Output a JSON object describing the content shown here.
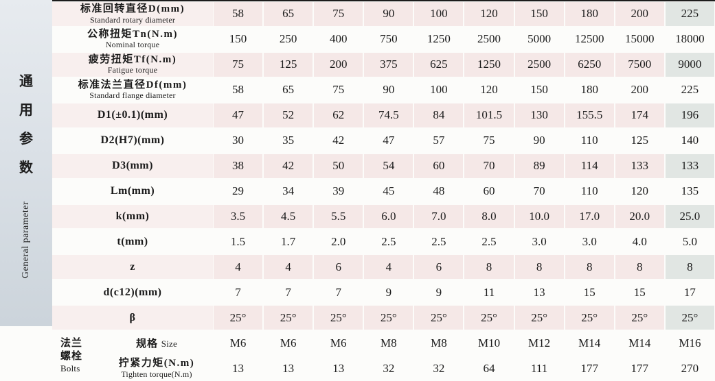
{
  "side": {
    "cn_chars": [
      "通",
      "用",
      "参",
      "数"
    ],
    "en": "General parameter"
  },
  "table": {
    "rows": [
      {
        "label_cn": "标准回转直径D(mm)",
        "label_en": "Standard rotary diameter",
        "two_line": true,
        "shaded": true,
        "values": [
          "58",
          "65",
          "75",
          "90",
          "100",
          "120",
          "150",
          "180",
          "200",
          "225"
        ]
      },
      {
        "label_cn": "公称扭矩Tn(N.m)",
        "label_en": "Nominal torque",
        "two_line": true,
        "shaded": false,
        "values": [
          "150",
          "250",
          "400",
          "750",
          "1250",
          "2500",
          "5000",
          "12500",
          "15000",
          "18000"
        ]
      },
      {
        "label_cn": "疲劳扭矩Tf(N.m)",
        "label_en": "Fatigue torque",
        "two_line": true,
        "shaded": true,
        "values": [
          "75",
          "125",
          "200",
          "375",
          "625",
          "1250",
          "2500",
          "6250",
          "7500",
          "9000"
        ]
      },
      {
        "label_cn": "标准法兰直径Df(mm)",
        "label_en": "Standard flange diameter",
        "two_line": true,
        "shaded": false,
        "values": [
          "58",
          "65",
          "75",
          "90",
          "100",
          "120",
          "150",
          "180",
          "200",
          "225"
        ]
      },
      {
        "label_cn": "D1(±0.1)(mm)",
        "label_en": "",
        "two_line": false,
        "shaded": true,
        "values": [
          "47",
          "52",
          "62",
          "74.5",
          "84",
          "101.5",
          "130",
          "155.5",
          "174",
          "196"
        ]
      },
      {
        "label_cn": "D2(H7)(mm)",
        "label_en": "",
        "two_line": false,
        "shaded": false,
        "values": [
          "30",
          "35",
          "42",
          "47",
          "57",
          "75",
          "90",
          "110",
          "125",
          "140"
        ]
      },
      {
        "label_cn": "D3(mm)",
        "label_en": "",
        "two_line": false,
        "shaded": true,
        "values": [
          "38",
          "42",
          "50",
          "54",
          "60",
          "70",
          "89",
          "114",
          "133",
          "133"
        ]
      },
      {
        "label_cn": "Lm(mm)",
        "label_en": "",
        "two_line": false,
        "shaded": false,
        "values": [
          "29",
          "34",
          "39",
          "45",
          "48",
          "60",
          "70",
          "110",
          "120",
          "135"
        ]
      },
      {
        "label_cn": "k(mm)",
        "label_en": "",
        "two_line": false,
        "shaded": true,
        "values": [
          "3.5",
          "4.5",
          "5.5",
          "6.0",
          "7.0",
          "8.0",
          "10.0",
          "17.0",
          "20.0",
          "25.0"
        ]
      },
      {
        "label_cn": "t(mm)",
        "label_en": "",
        "two_line": false,
        "shaded": false,
        "values": [
          "1.5",
          "1.7",
          "2.0",
          "2.5",
          "2.5",
          "2.5",
          "3.0",
          "3.0",
          "4.0",
          "5.0"
        ]
      },
      {
        "label_cn": "z",
        "label_en": "",
        "two_line": false,
        "shaded": true,
        "values": [
          "4",
          "4",
          "6",
          "4",
          "6",
          "8",
          "8",
          "8",
          "8",
          "8"
        ]
      },
      {
        "label_cn": "d(c12)(mm)",
        "label_en": "",
        "two_line": false,
        "shaded": false,
        "values": [
          "7",
          "7",
          "7",
          "9",
          "9",
          "11",
          "13",
          "15",
          "15",
          "17"
        ]
      },
      {
        "label_cn": "β",
        "label_en": "",
        "two_line": false,
        "shaded": true,
        "values": [
          "25°",
          "25°",
          "25°",
          "25°",
          "25°",
          "25°",
          "25°",
          "25°",
          "25°",
          "25°"
        ]
      }
    ],
    "bolts": {
      "label_cn_lines": [
        "法兰",
        "螺栓"
      ],
      "label_en": "Bolts",
      "rows": [
        {
          "label_cn": "规格",
          "label_en": "Size",
          "inline": true,
          "values": [
            "M6",
            "M6",
            "M6",
            "M8",
            "M8",
            "M10",
            "M12",
            "M14",
            "M14",
            "M16"
          ]
        },
        {
          "label_cn": "拧紧力矩(N.m)",
          "label_en": "Tighten torque(N.m)",
          "inline": false,
          "values": [
            "13",
            "13",
            "13",
            "32",
            "32",
            "64",
            "111",
            "177",
            "177",
            "270"
          ]
        }
      ]
    }
  },
  "colors": {
    "stripe": "#f5e8e7",
    "stripe_label": "#f8efee",
    "stripe_last_col": "#e1e6e3",
    "side_strip": "#d8dee4",
    "page_bg": "#fcfcfa",
    "top_rule": "#1c1c1c"
  }
}
